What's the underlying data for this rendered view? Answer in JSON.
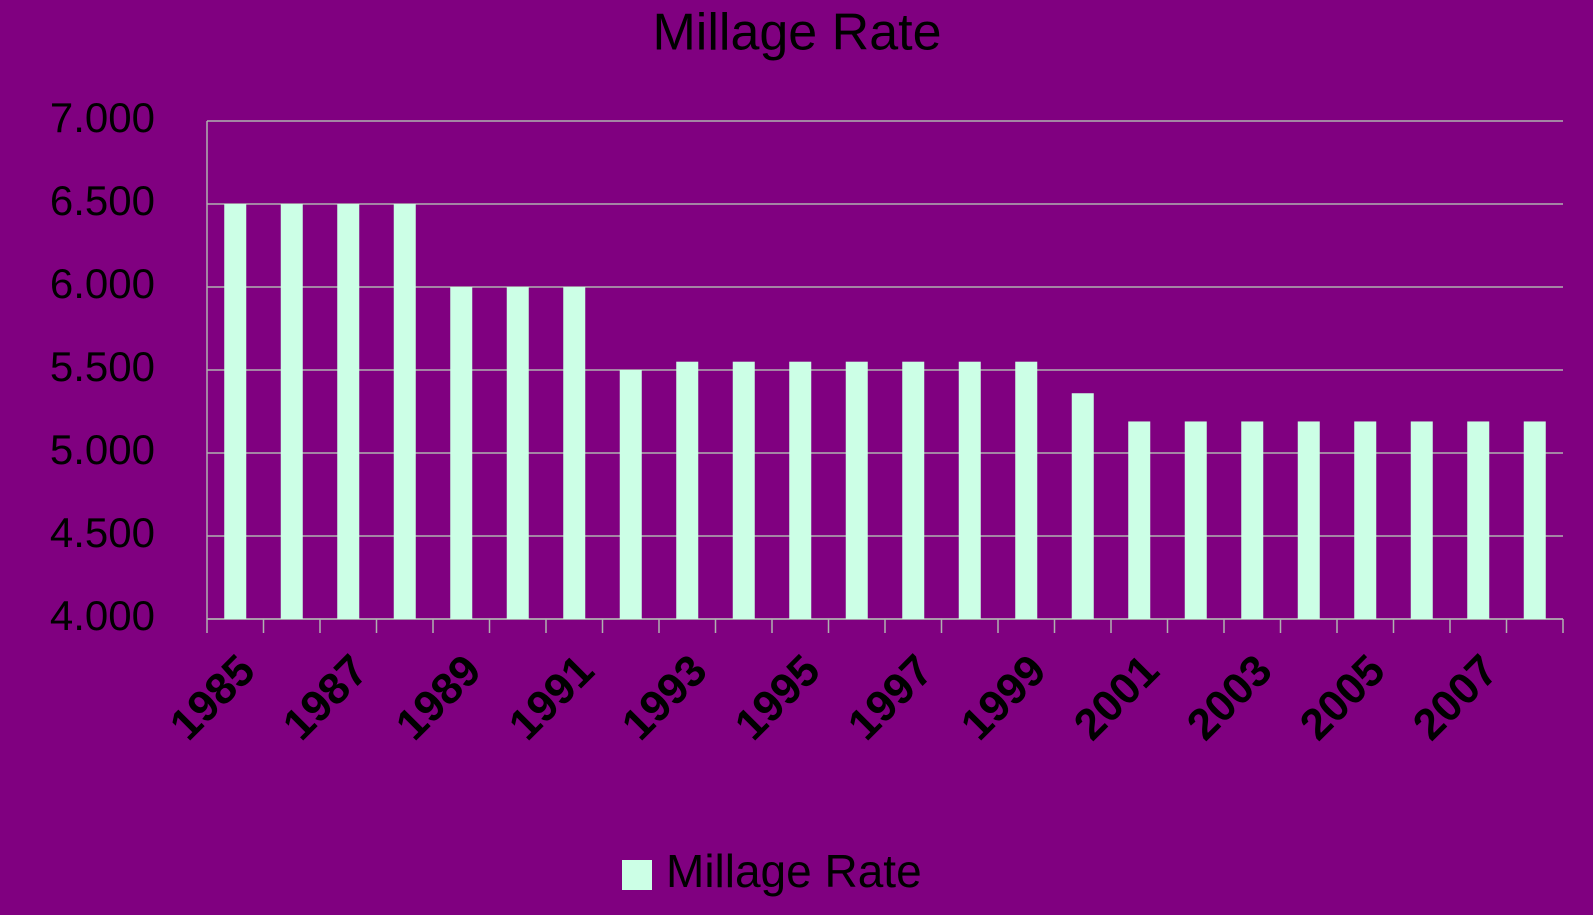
{
  "chart_data": {
    "type": "bar",
    "title": "Millage Rate",
    "categories": [
      "1985",
      null,
      "1987",
      null,
      "1989",
      null,
      "1991",
      null,
      "1993",
      null,
      "1995",
      null,
      "1997",
      null,
      "1999",
      null,
      "2001",
      null,
      "2003",
      null,
      "2005",
      null,
      "2007",
      null
    ],
    "series": [
      {
        "name": "Millage Rate",
        "color": "#ccffe6",
        "values": [
          6.5,
          6.5,
          6.5,
          6.5,
          6.0,
          6.0,
          6.0,
          5.5,
          5.55,
          5.55,
          5.55,
          5.55,
          5.55,
          5.55,
          5.55,
          5.36,
          5.19,
          5.19,
          5.19,
          5.19,
          5.19,
          5.19,
          5.19,
          5.19
        ]
      }
    ],
    "ylim": [
      4,
      7
    ],
    "yticks": [
      {
        "value": 4,
        "label": "4.000"
      },
      {
        "value": 4.5,
        "label": "4.500"
      },
      {
        "value": 5,
        "label": "5.000"
      },
      {
        "value": 5.5,
        "label": "5.500"
      },
      {
        "value": 6,
        "label": "6.000"
      },
      {
        "value": 6.5,
        "label": "6.500"
      },
      {
        "value": 7,
        "label": "7.000"
      }
    ],
    "grid": true,
    "legend": "bottom"
  }
}
